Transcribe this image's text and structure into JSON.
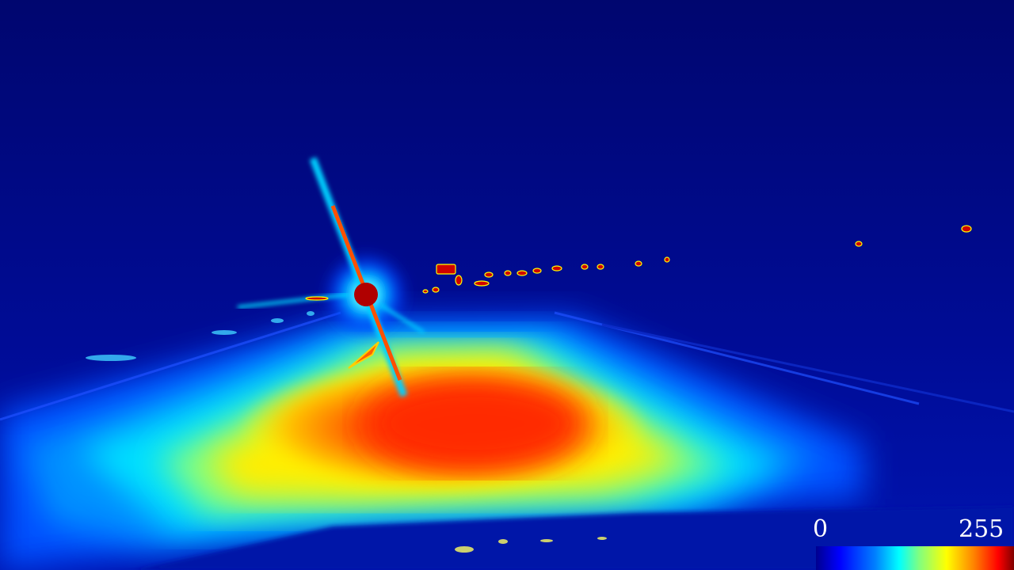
{
  "image": {
    "kind": "false-color thermal/intensity view of a night road with a light flare",
    "palette": "jet",
    "colors": {
      "background": "#010c8a",
      "road_glow_outer": "#0090ff",
      "road_glow_mid": "#00ffff",
      "road_glow_warm": "#ffff00",
      "road_glow_hot": "#ff4000",
      "light_source": "#b00000"
    }
  },
  "colorbar": {
    "min_label": "0",
    "max_label": "255",
    "min_value": 0,
    "max_value": 255
  }
}
